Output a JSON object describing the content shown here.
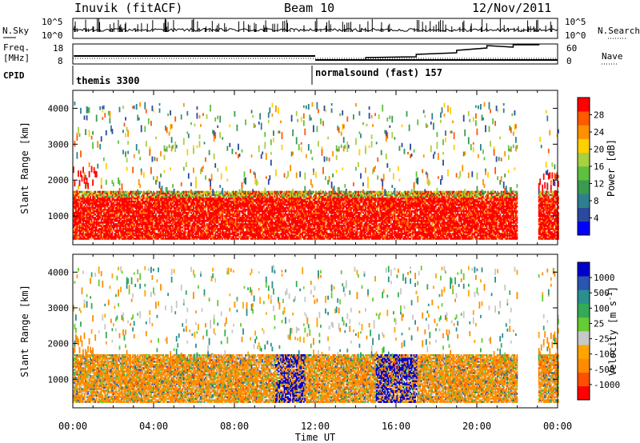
{
  "header": {
    "station": "Inuvik (fitACF)",
    "beam": "Beam 10",
    "date": "12/Nov/2011"
  },
  "params": {
    "nsky_label": "N.Sky",
    "nsearch_label": "N.Search",
    "freq_label_1": "Freq.",
    "freq_label_2": "[MHz]",
    "nave_label": "Nave",
    "cpid_label": "CPID",
    "noise_ticks": [
      "10^5",
      "10^0"
    ],
    "noise_ticks_right": [
      "10^5",
      "10^0"
    ],
    "freq_ticks": [
      "18",
      "8"
    ],
    "nave_ticks": [
      "60",
      "0"
    ],
    "cpid_segments": [
      {
        "label": "themis 3300",
        "start_hour": 0
      },
      {
        "label": "normalsound (fast) 157",
        "start_hour": 12
      }
    ]
  },
  "colors": {
    "power": [
      "#0000ff",
      "#2a4aa0",
      "#2f7f8f",
      "#3a9a50",
      "#5fc040",
      "#a8d040",
      "#ffd000",
      "#ff9000",
      "#ff5a00",
      "#ff0000"
    ],
    "velocity": [
      "#ff0000",
      "#ff5000",
      "#ff8c00",
      "#ffa500",
      "#c8c8c8",
      "#66cc33",
      "#33aa55",
      "#2a8f8f",
      "#2a55b0",
      "#0000cc"
    ]
  },
  "chart_data": [
    {
      "type": "heatmap",
      "panel": "power",
      "ylabel": "Slant Range [km]",
      "xlabel": "Time UT",
      "xlim": [
        0,
        24
      ],
      "ylim": [
        200,
        4500
      ],
      "x_ticks": [
        "00:00",
        "04:00",
        "08:00",
        "12:00",
        "16:00",
        "20:00",
        "00:00"
      ],
      "y_ticks": [
        "1000",
        "2000",
        "3000",
        "4000"
      ],
      "colorbar_label": "Power [dB]",
      "colorbar_ticks": [
        "4",
        "8",
        "12",
        "16",
        "20",
        "24",
        "28"
      ],
      "colorbar_range": [
        0,
        30
      ],
      "data_gap_hours": [
        22.0,
        23.0
      ],
      "dominant_band": {
        "range_km": [
          550,
          1650
        ],
        "value_db": 28
      }
    },
    {
      "type": "heatmap",
      "panel": "velocity",
      "ylabel": "Slant Range [km]",
      "xlabel": "Time UT",
      "xlim": [
        0,
        24
      ],
      "ylim": [
        200,
        4500
      ],
      "x_ticks": [
        "00:00",
        "04:00",
        "08:00",
        "12:00",
        "16:00",
        "20:00",
        "00:00"
      ],
      "y_ticks": [
        "1000",
        "2000",
        "3000",
        "4000"
      ],
      "colorbar_label": "Velocity [m s^-1]",
      "colorbar_ticks": [
        "-1000",
        "-500",
        "-100",
        "-25",
        "25",
        "100",
        "500",
        "1000"
      ],
      "data_gap_hours": [
        22.0,
        23.0
      ],
      "dominant_band": {
        "range_km": [
          550,
          1650
        ],
        "value_ms": -100
      }
    }
  ]
}
